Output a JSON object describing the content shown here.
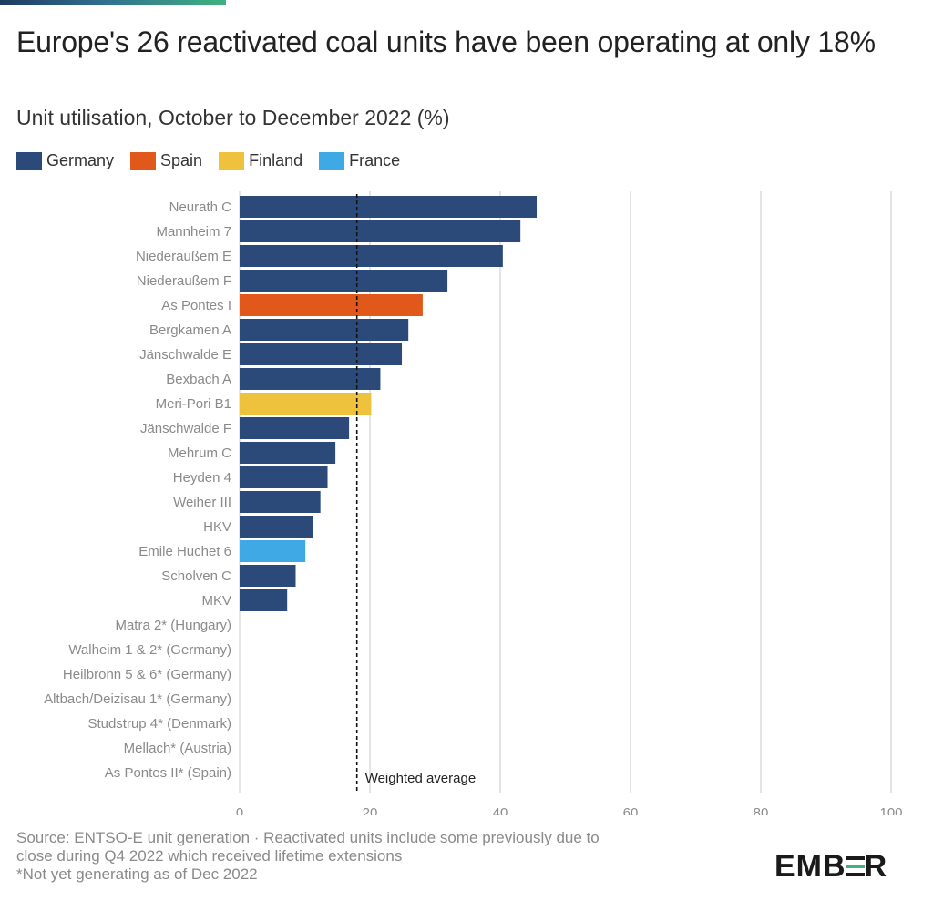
{
  "header": {
    "title": "Europe's 26 reactivated coal units have been operating at only 18%",
    "subtitle": "Unit utilisation, October to December 2022 (%)"
  },
  "legend": [
    {
      "label": "Germany",
      "color": "#2b4a7a"
    },
    {
      "label": "Spain",
      "color": "#e0591a"
    },
    {
      "label": "Finland",
      "color": "#efc23d"
    },
    {
      "label": "France",
      "color": "#3fa9e6"
    }
  ],
  "chart_data": {
    "type": "bar",
    "orientation": "horizontal",
    "categories": [
      "Neurath C",
      "Mannheim 7",
      "Niederaußem E",
      "Niederaußem F",
      "As Pontes I",
      "Bergkamen A",
      "Jänschwalde E",
      "Bexbach A",
      "Meri-Pori B1",
      "Jänschwalde F",
      "Mehrum C",
      "Heyden 4",
      "Weiher III",
      "HKV",
      "Emile Huchet 6",
      "Scholven C",
      "MKV",
      "Matra 2* (Hungary)",
      "Walheim 1 & 2* (Germany)",
      "Heilbronn 5 & 6* (Germany)",
      "Altbach/Deizisau 1* (Germany)",
      "Studstrup 4* (Denmark)",
      "Mellach* (Austria)",
      "As Pontes II* (Spain)"
    ],
    "values": [
      45.6,
      43.1,
      40.4,
      31.9,
      28.1,
      25.9,
      24.9,
      21.6,
      20.2,
      16.8,
      14.7,
      13.5,
      12.4,
      11.2,
      10.1,
      8.6,
      7.3,
      0,
      0,
      0,
      0,
      0,
      0,
      0
    ],
    "countries": [
      "Germany",
      "Germany",
      "Germany",
      "Germany",
      "Spain",
      "Germany",
      "Germany",
      "Germany",
      "Finland",
      "Germany",
      "Germany",
      "Germany",
      "Germany",
      "Germany",
      "France",
      "Germany",
      "Germany",
      "Hungary",
      "Germany",
      "Germany",
      "Germany",
      "Denmark",
      "Austria",
      "Spain"
    ],
    "xlim": [
      0,
      100
    ],
    "xticks": [
      "0",
      "20",
      "40",
      "60",
      "80",
      "100"
    ],
    "grid": true,
    "reference_line": {
      "label": "Weighted average",
      "value": 18
    }
  },
  "footer": {
    "source_line1": "Source: ENTSO-E unit generation · Reactivated units include some previously due to",
    "source_line2": "close during Q4 2022 which received lifetime extensions",
    "note": "*Not yet generating as of Dec 2022"
  },
  "logo": {
    "text": "EMBER"
  }
}
